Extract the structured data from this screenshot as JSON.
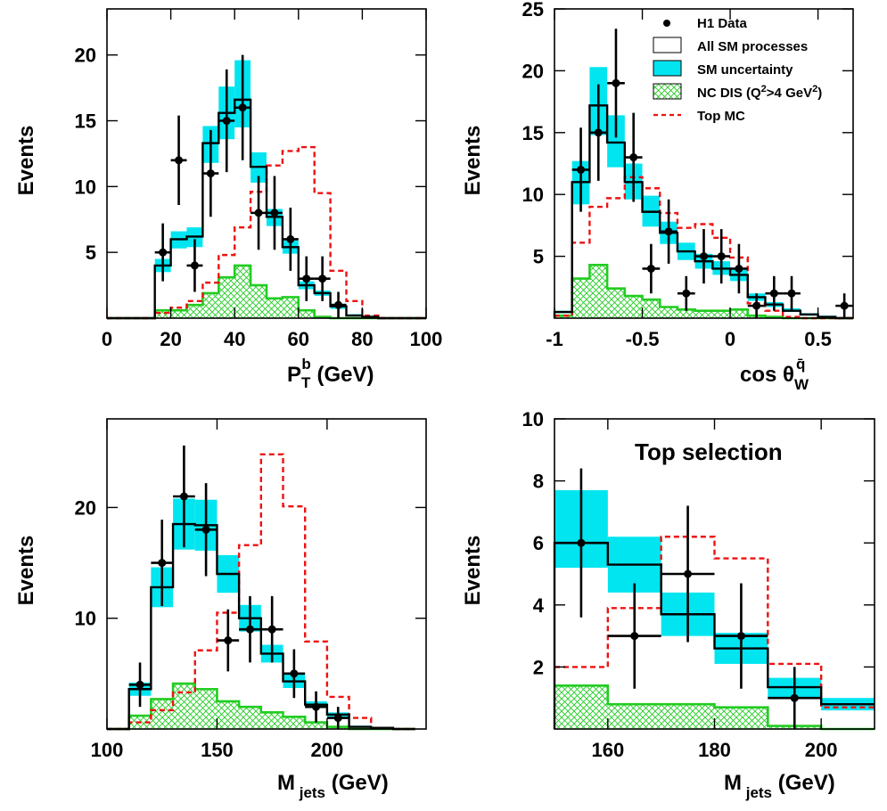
{
  "colors": {
    "sm_uncertainty": "#00e5f0",
    "sm_line": "#000000",
    "nc_dis": "#22cc22",
    "top_mc": "#ee1111",
    "data": "#000000"
  },
  "legend": {
    "entries": [
      "H1 Data",
      "All SM processes",
      "SM uncertainty",
      "NC DIS (Q",
      ">4 GeV",
      ")",
      "Top MC"
    ],
    "h1_data": "H1 Data",
    "all_sm": "All SM processes",
    "sm_unc": "SM uncertainty",
    "nc_dis_pre": "NC DIS (Q",
    "nc_dis_sup1": "2",
    "nc_dis_mid": ">4 GeV",
    "nc_dis_sup2": "2",
    "nc_dis_post": ")",
    "top_mc": "Top MC"
  },
  "chart_data": [
    {
      "type": "bar",
      "ylabel": "Events",
      "xlabel": {
        "main": "P",
        "sub": "T",
        "sup": "b",
        "unit": " (GeV)"
      },
      "xlim": [
        0,
        100
      ],
      "ylim": [
        0,
        23.5
      ],
      "xticks": [
        0,
        20,
        40,
        60,
        80,
        100
      ],
      "yticks": [
        5,
        10,
        15,
        20
      ],
      "edges": [
        0,
        5,
        10,
        15,
        20,
        25,
        30,
        35,
        40,
        45,
        50,
        55,
        60,
        65,
        70,
        75,
        80,
        85,
        90,
        95,
        100
      ],
      "sm": [
        0,
        0,
        0,
        4,
        6,
        6.2,
        13.3,
        15.6,
        16.6,
        11.5,
        7.7,
        5.4,
        2.5,
        1.9,
        0.9,
        0.2,
        0.1,
        0,
        0,
        0
      ],
      "unc_low": [
        0,
        0,
        0,
        3.5,
        5.3,
        5.4,
        11.8,
        13.6,
        14.5,
        10.3,
        7.0,
        4.9,
        2.2,
        1.7,
        0.7,
        0.2,
        0.1,
        0,
        0,
        0
      ],
      "unc_high": [
        0,
        0,
        0,
        4.5,
        6.6,
        6.9,
        14.6,
        17.6,
        19.6,
        12.6,
        8.3,
        5.9,
        2.8,
        2.1,
        1.1,
        0.3,
        0.2,
        0,
        0,
        0
      ],
      "nc": [
        0,
        0,
        0,
        0.6,
        0.6,
        1,
        1.9,
        3.1,
        4,
        2.5,
        1.5,
        1.6,
        0.6,
        0.1,
        0,
        0,
        0,
        0,
        0,
        0
      ],
      "top": [
        0,
        0,
        0,
        0.4,
        0.8,
        1.3,
        2.7,
        4.8,
        6.9,
        9.6,
        11.6,
        12.7,
        13,
        9.5,
        3.6,
        1.3,
        0.2,
        0,
        0,
        0
      ],
      "data": [
        {
          "x": 17.5,
          "y": 5,
          "ylo": 2.8,
          "yhi": 7.2
        },
        {
          "x": 22.5,
          "y": 12,
          "ylo": 8.6,
          "yhi": 15.4
        },
        {
          "x": 27.5,
          "y": 4,
          "ylo": 2,
          "yhi": 6
        },
        {
          "x": 32.5,
          "y": 11,
          "ylo": 7.7,
          "yhi": 14.3
        },
        {
          "x": 37.5,
          "y": 15,
          "ylo": 11.1,
          "yhi": 18.9
        },
        {
          "x": 42.5,
          "y": 16,
          "ylo": 12,
          "yhi": 20
        },
        {
          "x": 47.5,
          "y": 8,
          "ylo": 5.2,
          "yhi": 10.8
        },
        {
          "x": 52.5,
          "y": 8,
          "ylo": 5.2,
          "yhi": 10.8
        },
        {
          "x": 57.5,
          "y": 6,
          "ylo": 3.6,
          "yhi": 8.4
        },
        {
          "x": 62.5,
          "y": 3,
          "ylo": 1.3,
          "yhi": 4.7
        },
        {
          "x": 67.5,
          "y": 3,
          "ylo": 1.3,
          "yhi": 4.7
        },
        {
          "x": 72.5,
          "y": 1,
          "ylo": 0,
          "yhi": 2
        }
      ]
    },
    {
      "type": "bar",
      "ylabel": "Events",
      "xlabel": {
        "main": "cos θ",
        "sub": "W",
        "sup": "q̄",
        "unit": ""
      },
      "xlim": [
        -1,
        0.7
      ],
      "ylim": [
        0,
        25
      ],
      "xticks": [
        -1,
        -0.5,
        0,
        0.5
      ],
      "yticks": [
        5,
        10,
        15,
        20,
        25
      ],
      "edges": [
        -1,
        -0.9,
        -0.8,
        -0.7,
        -0.6,
        -0.5,
        -0.4,
        -0.3,
        -0.2,
        -0.1,
        0,
        0.1,
        0.2,
        0.3,
        0.4,
        0.5,
        0.6,
        0.7
      ],
      "sm": [
        0.5,
        11,
        17.2,
        14.2,
        11,
        8.6,
        6.9,
        5.4,
        4.6,
        4,
        3.5,
        1.7,
        1.1,
        0.6,
        0.3,
        0.1,
        0
      ],
      "unc_low": [
        0.4,
        9.2,
        14.8,
        12.2,
        9.6,
        7.4,
        6,
        4.7,
        4,
        3.5,
        3,
        1.4,
        0.9,
        0.5,
        0.2,
        0.1,
        0
      ],
      "unc_high": [
        0.6,
        12.7,
        20.3,
        16.4,
        12.5,
        9.9,
        7.8,
        6.1,
        5.2,
        4.6,
        4,
        2,
        1.3,
        0.8,
        0.4,
        0.2,
        0
      ],
      "nc": [
        0.2,
        3.2,
        4.3,
        2.4,
        1.8,
        1.5,
        0.9,
        0.7,
        0.6,
        0.6,
        0.7,
        0.2,
        0.1,
        0,
        0,
        0,
        0
      ],
      "top": [
        0.2,
        6.1,
        9,
        9.7,
        11.4,
        10.5,
        8.5,
        7.3,
        7.6,
        6.5,
        4.9,
        1.2,
        0.6,
        0.1,
        0,
        0,
        0
      ],
      "data": [
        {
          "x": -0.85,
          "y": 12,
          "ylo": 8.6,
          "yhi": 15.4
        },
        {
          "x": -0.75,
          "y": 15,
          "ylo": 11.1,
          "yhi": 18.9
        },
        {
          "x": -0.65,
          "y": 19,
          "ylo": 14.6,
          "yhi": 23.4
        },
        {
          "x": -0.55,
          "y": 13,
          "ylo": 9.4,
          "yhi": 16.6
        },
        {
          "x": -0.45,
          "y": 4,
          "ylo": 2,
          "yhi": 6
        },
        {
          "x": -0.35,
          "y": 7,
          "ylo": 4.4,
          "yhi": 9.6
        },
        {
          "x": -0.25,
          "y": 2,
          "ylo": 0.6,
          "yhi": 3.4
        },
        {
          "x": -0.15,
          "y": 5,
          "ylo": 2.8,
          "yhi": 7.2
        },
        {
          "x": -0.05,
          "y": 5,
          "ylo": 2.8,
          "yhi": 7.2
        },
        {
          "x": 0.05,
          "y": 4,
          "ylo": 2,
          "yhi": 6
        },
        {
          "x": 0.15,
          "y": 1,
          "ylo": 0,
          "yhi": 2
        },
        {
          "x": 0.25,
          "y": 2,
          "ylo": 0.6,
          "yhi": 3.4
        },
        {
          "x": 0.35,
          "y": 2,
          "ylo": 0.6,
          "yhi": 3.4
        },
        {
          "x": 0.65,
          "y": 1,
          "ylo": 0,
          "yhi": 2
        }
      ]
    },
    {
      "type": "bar",
      "ylabel": "Events",
      "xlabel": {
        "main": "M",
        "sub": " jets",
        "sup": "",
        "unit": " (GeV)"
      },
      "xlim": [
        100,
        245
      ],
      "ylim": [
        0,
        28
      ],
      "xticks": [
        100,
        150,
        200
      ],
      "yticks": [
        10,
        20
      ],
      "edges": [
        100,
        110,
        120,
        130,
        140,
        150,
        160,
        170,
        180,
        190,
        200,
        210,
        220,
        230,
        240
      ],
      "sm": [
        0,
        3.6,
        12.8,
        18.5,
        18.4,
        14,
        10,
        6.8,
        4.3,
        2.2,
        1.3,
        0.2,
        0.1,
        0
      ],
      "unc_low": [
        0,
        3,
        11,
        16.2,
        16.1,
        12.3,
        8.8,
        6,
        3.7,
        1.9,
        1.1,
        0.2,
        0.1,
        0
      ],
      "unc_high": [
        0,
        4.2,
        14.6,
        20.8,
        20.7,
        15.7,
        11.2,
        7.6,
        4.9,
        2.5,
        1.5,
        0.3,
        0.1,
        0
      ],
      "nc": [
        0,
        1.2,
        2.7,
        4.1,
        3.6,
        2.5,
        2,
        1.5,
        1.1,
        0.6,
        0.2,
        0,
        0,
        0
      ],
      "top": [
        0,
        0.6,
        1.7,
        3.3,
        7.1,
        10.5,
        16.6,
        24.8,
        20.1,
        7.9,
        2.9,
        1,
        0.1,
        0
      ],
      "data": [
        {
          "x": 115,
          "y": 4,
          "ylo": 2,
          "yhi": 6
        },
        {
          "x": 125,
          "y": 15,
          "ylo": 11.1,
          "yhi": 18.9
        },
        {
          "x": 135,
          "y": 21,
          "ylo": 16.4,
          "yhi": 25.6
        },
        {
          "x": 145,
          "y": 18,
          "ylo": 13.8,
          "yhi": 22.2
        },
        {
          "x": 155,
          "y": 8,
          "ylo": 5.2,
          "yhi": 10.8
        },
        {
          "x": 165,
          "y": 9,
          "ylo": 6,
          "yhi": 12
        },
        {
          "x": 175,
          "y": 9,
          "ylo": 6,
          "yhi": 12
        },
        {
          "x": 185,
          "y": 5,
          "ylo": 2.8,
          "yhi": 7.2
        },
        {
          "x": 195,
          "y": 2,
          "ylo": 0.6,
          "yhi": 3.4
        },
        {
          "x": 205,
          "y": 1,
          "ylo": 0,
          "yhi": 2
        }
      ]
    },
    {
      "type": "bar",
      "ylabel": "Events",
      "annotation": "Top selection",
      "xlabel": {
        "main": "M",
        "sub": " jets",
        "sup": "",
        "unit": " (GeV)"
      },
      "xlim": [
        150,
        210
      ],
      "ylim": [
        0,
        10
      ],
      "xticks": [
        160,
        180,
        200
      ],
      "yticks": [
        2,
        4,
        6,
        8,
        10
      ],
      "edges": [
        150,
        160,
        170,
        180,
        190,
        200,
        210
      ],
      "sm": [
        6,
        5.3,
        3.7,
        2.6,
        1.35,
        0.8
      ],
      "unc_low": [
        5.2,
        4.4,
        3,
        2.1,
        1,
        0.6
      ],
      "unc_high": [
        7.7,
        6.2,
        4.4,
        3.1,
        1.65,
        1
      ],
      "nc": [
        1.4,
        0.8,
        0.8,
        0.7,
        0.1,
        0
      ],
      "top": [
        2,
        3.9,
        6.2,
        5.5,
        2.1,
        0.7
      ],
      "data": [
        {
          "x": 155,
          "y": 6,
          "ylo": 3.6,
          "yhi": 8.4
        },
        {
          "x": 165,
          "y": 3,
          "ylo": 1.3,
          "yhi": 4.7
        },
        {
          "x": 175,
          "y": 5,
          "ylo": 2.8,
          "yhi": 7.2
        },
        {
          "x": 185,
          "y": 3,
          "ylo": 1.3,
          "yhi": 4.7
        },
        {
          "x": 195,
          "y": 1,
          "ylo": 0,
          "yhi": 2
        }
      ]
    }
  ]
}
